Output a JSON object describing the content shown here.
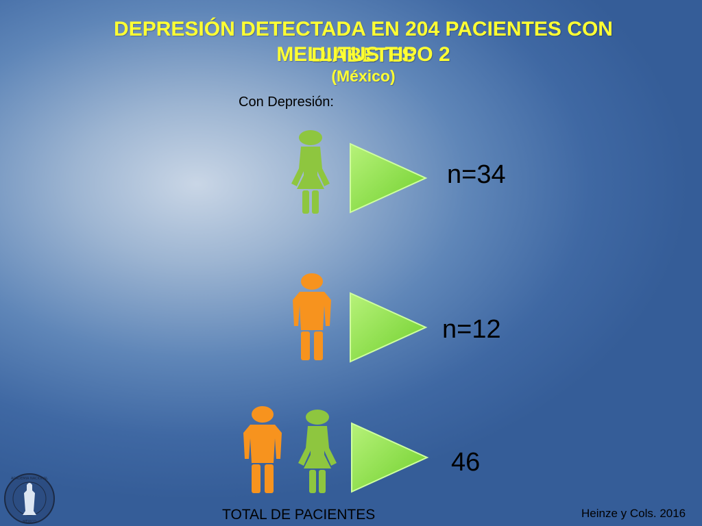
{
  "title": {
    "line1": "DEPRESIÓN DETECTADA EN 204 PACIENTES CON DIABETES",
    "line2": "MELLITUS TIPO 2",
    "subtitle": "(México)"
  },
  "label_with_depression": "Con Depresión:",
  "rows": [
    {
      "icon": "female-person-icon",
      "value": "n=34"
    },
    {
      "icon": "male-person-icon",
      "value": "n=12"
    },
    {
      "icon": "male-and-female-persons-icon",
      "value": "46"
    }
  ],
  "total_label": "TOTAL DE PACIENTES",
  "citation": "Heinze y Cols. 2016",
  "seal_text": "ACADEMIA NACIONAL DE MEDICINA · MÉXICO",
  "colors": {
    "title": "#ffff33",
    "female": "#8ec63f",
    "male": "#f7931e",
    "arrow": "#8ee04a"
  }
}
